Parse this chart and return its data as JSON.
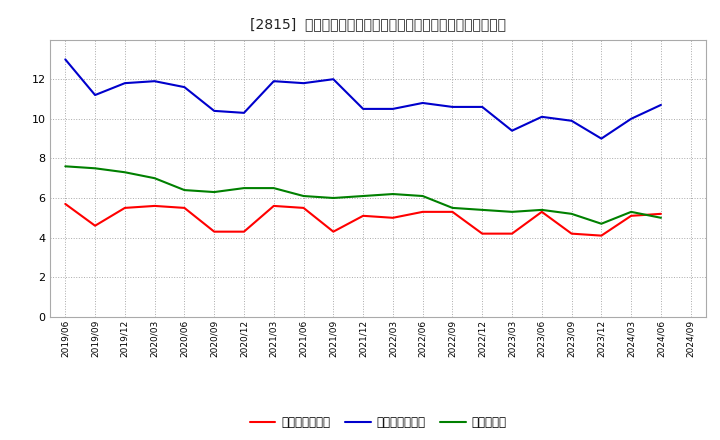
{
  "title_bracket": "[2815]",
  "title_main": "党上債権回転率、買入債務回転率、在庫回転率の推移",
  "ylim": [
    0.0,
    14.0
  ],
  "yticks": [
    0.0,
    2.0,
    4.0,
    6.0,
    8.0,
    10.0,
    12.0
  ],
  "x_labels": [
    "2019/06",
    "2019/09",
    "2019/12",
    "2020/03",
    "2020/06",
    "2020/09",
    "2020/12",
    "2021/03",
    "2021/06",
    "2021/09",
    "2021/12",
    "2022/03",
    "2022/06",
    "2022/09",
    "2022/12",
    "2023/03",
    "2023/06",
    "2023/09",
    "2023/12",
    "2024/03",
    "2024/06",
    "2024/09"
  ],
  "series1": [
    5.7,
    4.6,
    5.5,
    5.6,
    5.5,
    4.3,
    4.3,
    5.6,
    5.5,
    4.3,
    5.1,
    5.0,
    5.3,
    5.3,
    4.2,
    4.2,
    5.3,
    4.2,
    4.1,
    5.1,
    5.2,
    null
  ],
  "series2": [
    13.0,
    11.2,
    11.8,
    11.9,
    11.6,
    10.4,
    10.3,
    11.9,
    11.8,
    12.0,
    10.5,
    10.5,
    10.8,
    10.6,
    10.6,
    9.4,
    10.1,
    9.9,
    9.0,
    10.0,
    10.7,
    null
  ],
  "series3": [
    7.6,
    7.5,
    7.3,
    7.0,
    6.4,
    6.3,
    6.5,
    6.5,
    6.1,
    6.0,
    6.1,
    6.2,
    6.1,
    5.5,
    5.4,
    5.3,
    5.4,
    5.2,
    4.7,
    5.3,
    5.0,
    null
  ],
  "color_red": "#ff0000",
  "color_blue": "#0000cc",
  "color_green": "#008000",
  "background_color": "#ffffff",
  "grid_color": "#aaaaaa",
  "label1": "党上債権回転率",
  "label2": "買入債務回転率",
  "label3": "在庫回転率"
}
